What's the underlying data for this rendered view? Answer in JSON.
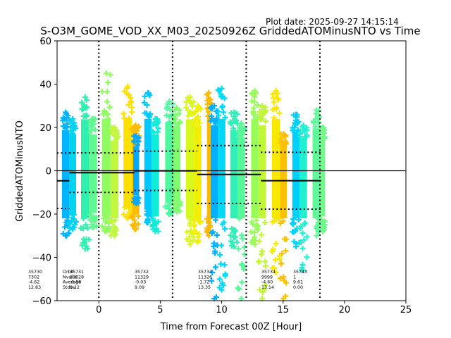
{
  "plot_date": "Plot date: 2025-09-27 14:15:14",
  "chart_data": {
    "type": "scatter",
    "title": "S-O3M_GOME_VOD_XX_M03_20250926Z GriddedATOMinusNTO vs Time",
    "xlabel": "Time from Forecast 00Z [Hour]",
    "ylabel": "GriddedATOMinusNTO",
    "xlim": [
      -3.4,
      25
    ],
    "ylim": [
      -60,
      60
    ],
    "xticks": [
      0,
      5,
      10,
      15,
      20,
      25
    ],
    "xtick_labels": [
      "0",
      "5",
      "10",
      "15",
      "20",
      "25"
    ],
    "yticks": [
      60,
      40,
      20,
      0,
      -20,
      -40,
      -60
    ],
    "ytick_labels": [
      "60",
      "40",
      "20",
      "0",
      "−20",
      "−40",
      "−60"
    ],
    "grid": false,
    "marker": "+",
    "zero_line": 0,
    "window_boundaries": [
      0,
      6,
      12,
      18
    ],
    "stats_labels": [
      "Orbit",
      "Nvalid",
      "Average",
      "Stdev"
    ],
    "orbits": [
      {
        "orbit": "35730",
        "nvalid": "7302",
        "average": "-4.62",
        "stdev": "12.83",
        "x_start": -3.4,
        "x_end": -2.4
      },
      {
        "orbit": "35731",
        "nvalid": "10828",
        "average": "-0.88",
        "stdev": "9.12",
        "x_start": -2.4,
        "x_end": 2.9
      },
      {
        "orbit": "35732",
        "nvalid": "11329",
        "average": "-0.03",
        "stdev": "9.09",
        "x_start": 2.9,
        "x_end": 8.0
      },
      {
        "orbit": "35733",
        "nvalid": "11326",
        "average": "-1.72",
        "stdev": "13.35",
        "x_start": 8.0,
        "x_end": 13.2
      },
      {
        "orbit": "35734",
        "nvalid": "9999",
        "average": "-4.60",
        "stdev": "13.14",
        "x_start": 13.2,
        "x_end": 18.1
      },
      {
        "orbit": "35743",
        "nvalid": "1",
        "average": "9.61",
        "stdev": "0.00",
        "x_start": 16.0,
        "x_end": 16.0
      }
    ],
    "strips": [
      {
        "x0": -3.0,
        "x1": -2.4,
        "ymin": -30,
        "ymax": 27,
        "color": "#00b4ff"
      },
      {
        "x0": -2.4,
        "x1": -1.85,
        "ymin": -27,
        "ymax": 24,
        "color": "#00d4f0"
      },
      {
        "x0": -1.45,
        "x1": -0.78,
        "ymin": -36,
        "ymax": 34,
        "color": "#30f0b0"
      },
      {
        "x0": -0.78,
        "x1": -0.15,
        "ymin": -26,
        "ymax": 24,
        "color": "#60f890"
      },
      {
        "x0": 0.25,
        "x1": 0.95,
        "ymin": -28,
        "ymax": 45,
        "color": "#90fc60"
      },
      {
        "x0": 0.95,
        "x1": 1.6,
        "ymin": -30,
        "ymax": 20,
        "color": "#c0f840"
      },
      {
        "x0": 2.0,
        "x1": 2.7,
        "ymin": -22,
        "ymax": 39,
        "color": "#ffe000"
      },
      {
        "x0": 2.7,
        "x1": 3.3,
        "ymin": -27,
        "ymax": 21,
        "color": "#ffbc00"
      },
      {
        "x0": 2.8,
        "x1": 3.25,
        "ymin": -15,
        "ymax": 16,
        "color": "#00a8ff"
      },
      {
        "x0": 3.7,
        "x1": 4.3,
        "ymin": -24,
        "ymax": 36,
        "color": "#00c8ff"
      },
      {
        "x0": 4.3,
        "x1": 4.9,
        "ymin": -28,
        "ymax": 24,
        "color": "#10ecd8"
      },
      {
        "x0": 5.4,
        "x1": 6.05,
        "ymin": -20,
        "ymax": 32,
        "color": "#50f8a0"
      },
      {
        "x0": 6.05,
        "x1": 6.65,
        "ymin": -19,
        "ymax": 29,
        "color": "#80fc70"
      },
      {
        "x0": 7.1,
        "x1": 7.75,
        "ymin": -34,
        "ymax": 34,
        "color": "#d8f820"
      },
      {
        "x0": 7.75,
        "x1": 8.35,
        "ymin": -33,
        "ymax": 30,
        "color": "#f0f000"
      },
      {
        "x0": 8.8,
        "x1": 9.1,
        "ymin": -30,
        "ymax": 36,
        "color": "#ffb800"
      },
      {
        "x0": 9.1,
        "x1": 9.7,
        "ymin": -60,
        "ymax": 30,
        "color": "#00b0ff"
      },
      {
        "x0": 9.7,
        "x1": 10.3,
        "ymin": -55,
        "ymax": 38,
        "color": "#00d8f8"
      },
      {
        "x0": 10.7,
        "x1": 11.3,
        "ymin": -35,
        "ymax": 27,
        "color": "#30f0b8"
      },
      {
        "x0": 11.3,
        "x1": 11.9,
        "ymin": -60,
        "ymax": 22,
        "color": "#58f898"
      },
      {
        "x0": 12.4,
        "x1": 13.0,
        "ymin": -34,
        "ymax": 37,
        "color": "#98fc58"
      },
      {
        "x0": 13.0,
        "x1": 13.6,
        "ymin": -60,
        "ymax": 30,
        "color": "#c0f838"
      },
      {
        "x0": 14.1,
        "x1": 14.75,
        "ymin": -47,
        "ymax": 37,
        "color": "#f8e800"
      },
      {
        "x0": 14.75,
        "x1": 15.3,
        "ymin": -60,
        "ymax": 17,
        "color": "#ffc000"
      },
      {
        "x0": 15.75,
        "x1": 16.35,
        "ymin": -35,
        "ymax": 26,
        "color": "#00d0f8"
      },
      {
        "x0": 16.35,
        "x1": 16.95,
        "ymin": -46,
        "ymax": 21,
        "color": "#20f0d0"
      },
      {
        "x0": 17.4,
        "x1": 18.05,
        "ymin": -30,
        "ymax": 28,
        "color": "#60f898"
      },
      {
        "x0": 18.05,
        "x1": 18.4,
        "ymin": -28,
        "ymax": 20,
        "color": "#70fa88"
      }
    ]
  }
}
